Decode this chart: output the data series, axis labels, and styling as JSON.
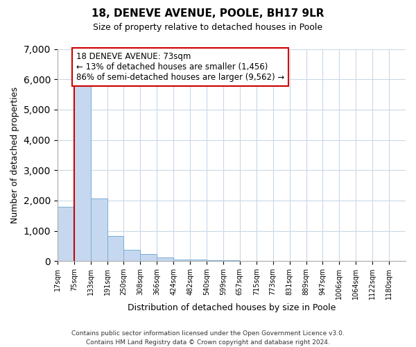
{
  "title": "18, DENEVE AVENUE, POOLE, BH17 9LR",
  "subtitle": "Size of property relative to detached houses in Poole",
  "xlabel": "Distribution of detached houses by size in Poole",
  "ylabel": "Number of detached properties",
  "bin_labels": [
    "17sqm",
    "75sqm",
    "133sqm",
    "191sqm",
    "250sqm",
    "308sqm",
    "366sqm",
    "424sqm",
    "482sqm",
    "540sqm",
    "599sqm",
    "657sqm",
    "715sqm",
    "773sqm",
    "831sqm",
    "889sqm",
    "947sqm",
    "1006sqm",
    "1064sqm",
    "1122sqm",
    "1180sqm"
  ],
  "bar_heights": [
    1780,
    5780,
    2060,
    840,
    370,
    230,
    110,
    60,
    40,
    30,
    20,
    10,
    5,
    0,
    0,
    0,
    0,
    0,
    0,
    0
  ],
  "bar_color": "#c5d8f0",
  "bar_edge_color": "#7aafd4",
  "property_line_x": 1.0,
  "property_line_color": "#cc0000",
  "annotation_text": "18 DENEVE AVENUE: 73sqm\n← 13% of detached houses are smaller (1,456)\n86% of semi-detached houses are larger (9,562) →",
  "annotation_box_color": "#ffffff",
  "annotation_box_edge_color": "#cc0000",
  "ylim": [
    0,
    7000
  ],
  "yticks": [
    0,
    1000,
    2000,
    3000,
    4000,
    5000,
    6000,
    7000
  ],
  "footer_line1": "Contains HM Land Registry data © Crown copyright and database right 2024.",
  "footer_line2": "Contains public sector information licensed under the Open Government Licence v3.0.",
  "bg_color": "#ffffff",
  "grid_color": "#c8d8e8"
}
